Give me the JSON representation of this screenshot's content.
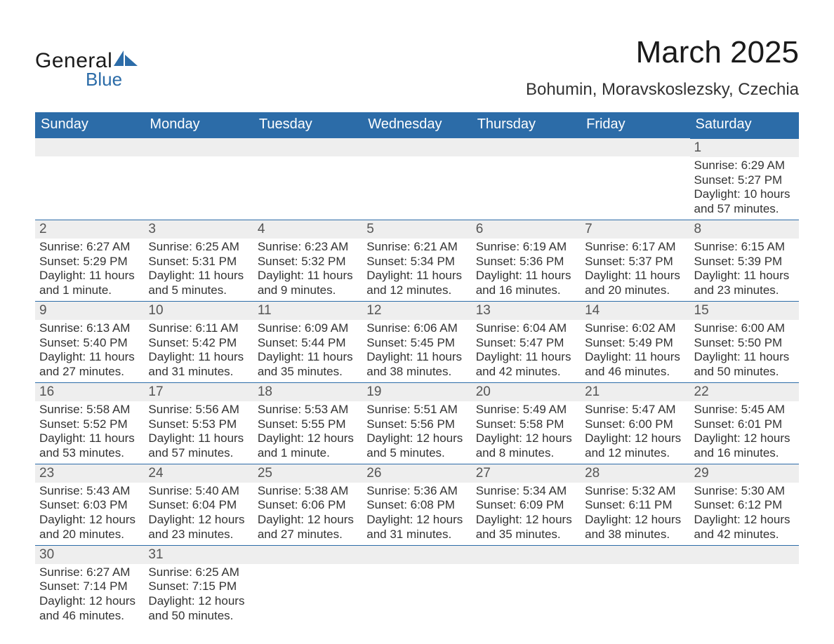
{
  "brand": {
    "word1": "General",
    "word2": "Blue",
    "accent_color": "#2c6ca8"
  },
  "title": "March 2025",
  "location": "Bohumin, Moravskoslezsky, Czechia",
  "colors": {
    "header_bg": "#2c6ca8",
    "header_text": "#ffffff",
    "daynum_bg": "#eeeeee",
    "row_border": "#2c6ca8",
    "body_text": "#333333",
    "page_bg": "#ffffff"
  },
  "weekdays": [
    "Sunday",
    "Monday",
    "Tuesday",
    "Wednesday",
    "Thursday",
    "Friday",
    "Saturday"
  ],
  "weeks": [
    [
      null,
      null,
      null,
      null,
      null,
      null,
      {
        "n": "1",
        "sunrise": "Sunrise: 6:29 AM",
        "sunset": "Sunset: 5:27 PM",
        "daylight": "Daylight: 10 hours and 57 minutes."
      }
    ],
    [
      {
        "n": "2",
        "sunrise": "Sunrise: 6:27 AM",
        "sunset": "Sunset: 5:29 PM",
        "daylight": "Daylight: 11 hours and 1 minute."
      },
      {
        "n": "3",
        "sunrise": "Sunrise: 6:25 AM",
        "sunset": "Sunset: 5:31 PM",
        "daylight": "Daylight: 11 hours and 5 minutes."
      },
      {
        "n": "4",
        "sunrise": "Sunrise: 6:23 AM",
        "sunset": "Sunset: 5:32 PM",
        "daylight": "Daylight: 11 hours and 9 minutes."
      },
      {
        "n": "5",
        "sunrise": "Sunrise: 6:21 AM",
        "sunset": "Sunset: 5:34 PM",
        "daylight": "Daylight: 11 hours and 12 minutes."
      },
      {
        "n": "6",
        "sunrise": "Sunrise: 6:19 AM",
        "sunset": "Sunset: 5:36 PM",
        "daylight": "Daylight: 11 hours and 16 minutes."
      },
      {
        "n": "7",
        "sunrise": "Sunrise: 6:17 AM",
        "sunset": "Sunset: 5:37 PM",
        "daylight": "Daylight: 11 hours and 20 minutes."
      },
      {
        "n": "8",
        "sunrise": "Sunrise: 6:15 AM",
        "sunset": "Sunset: 5:39 PM",
        "daylight": "Daylight: 11 hours and 23 minutes."
      }
    ],
    [
      {
        "n": "9",
        "sunrise": "Sunrise: 6:13 AM",
        "sunset": "Sunset: 5:40 PM",
        "daylight": "Daylight: 11 hours and 27 minutes."
      },
      {
        "n": "10",
        "sunrise": "Sunrise: 6:11 AM",
        "sunset": "Sunset: 5:42 PM",
        "daylight": "Daylight: 11 hours and 31 minutes."
      },
      {
        "n": "11",
        "sunrise": "Sunrise: 6:09 AM",
        "sunset": "Sunset: 5:44 PM",
        "daylight": "Daylight: 11 hours and 35 minutes."
      },
      {
        "n": "12",
        "sunrise": "Sunrise: 6:06 AM",
        "sunset": "Sunset: 5:45 PM",
        "daylight": "Daylight: 11 hours and 38 minutes."
      },
      {
        "n": "13",
        "sunrise": "Sunrise: 6:04 AM",
        "sunset": "Sunset: 5:47 PM",
        "daylight": "Daylight: 11 hours and 42 minutes."
      },
      {
        "n": "14",
        "sunrise": "Sunrise: 6:02 AM",
        "sunset": "Sunset: 5:49 PM",
        "daylight": "Daylight: 11 hours and 46 minutes."
      },
      {
        "n": "15",
        "sunrise": "Sunrise: 6:00 AM",
        "sunset": "Sunset: 5:50 PM",
        "daylight": "Daylight: 11 hours and 50 minutes."
      }
    ],
    [
      {
        "n": "16",
        "sunrise": "Sunrise: 5:58 AM",
        "sunset": "Sunset: 5:52 PM",
        "daylight": "Daylight: 11 hours and 53 minutes."
      },
      {
        "n": "17",
        "sunrise": "Sunrise: 5:56 AM",
        "sunset": "Sunset: 5:53 PM",
        "daylight": "Daylight: 11 hours and 57 minutes."
      },
      {
        "n": "18",
        "sunrise": "Sunrise: 5:53 AM",
        "sunset": "Sunset: 5:55 PM",
        "daylight": "Daylight: 12 hours and 1 minute."
      },
      {
        "n": "19",
        "sunrise": "Sunrise: 5:51 AM",
        "sunset": "Sunset: 5:56 PM",
        "daylight": "Daylight: 12 hours and 5 minutes."
      },
      {
        "n": "20",
        "sunrise": "Sunrise: 5:49 AM",
        "sunset": "Sunset: 5:58 PM",
        "daylight": "Daylight: 12 hours and 8 minutes."
      },
      {
        "n": "21",
        "sunrise": "Sunrise: 5:47 AM",
        "sunset": "Sunset: 6:00 PM",
        "daylight": "Daylight: 12 hours and 12 minutes."
      },
      {
        "n": "22",
        "sunrise": "Sunrise: 5:45 AM",
        "sunset": "Sunset: 6:01 PM",
        "daylight": "Daylight: 12 hours and 16 minutes."
      }
    ],
    [
      {
        "n": "23",
        "sunrise": "Sunrise: 5:43 AM",
        "sunset": "Sunset: 6:03 PM",
        "daylight": "Daylight: 12 hours and 20 minutes."
      },
      {
        "n": "24",
        "sunrise": "Sunrise: 5:40 AM",
        "sunset": "Sunset: 6:04 PM",
        "daylight": "Daylight: 12 hours and 23 minutes."
      },
      {
        "n": "25",
        "sunrise": "Sunrise: 5:38 AM",
        "sunset": "Sunset: 6:06 PM",
        "daylight": "Daylight: 12 hours and 27 minutes."
      },
      {
        "n": "26",
        "sunrise": "Sunrise: 5:36 AM",
        "sunset": "Sunset: 6:08 PM",
        "daylight": "Daylight: 12 hours and 31 minutes."
      },
      {
        "n": "27",
        "sunrise": "Sunrise: 5:34 AM",
        "sunset": "Sunset: 6:09 PM",
        "daylight": "Daylight: 12 hours and 35 minutes."
      },
      {
        "n": "28",
        "sunrise": "Sunrise: 5:32 AM",
        "sunset": "Sunset: 6:11 PM",
        "daylight": "Daylight: 12 hours and 38 minutes."
      },
      {
        "n": "29",
        "sunrise": "Sunrise: 5:30 AM",
        "sunset": "Sunset: 6:12 PM",
        "daylight": "Daylight: 12 hours and 42 minutes."
      }
    ],
    [
      {
        "n": "30",
        "sunrise": "Sunrise: 6:27 AM",
        "sunset": "Sunset: 7:14 PM",
        "daylight": "Daylight: 12 hours and 46 minutes."
      },
      {
        "n": "31",
        "sunrise": "Sunrise: 6:25 AM",
        "sunset": "Sunset: 7:15 PM",
        "daylight": "Daylight: 12 hours and 50 minutes."
      },
      null,
      null,
      null,
      null,
      null
    ]
  ]
}
